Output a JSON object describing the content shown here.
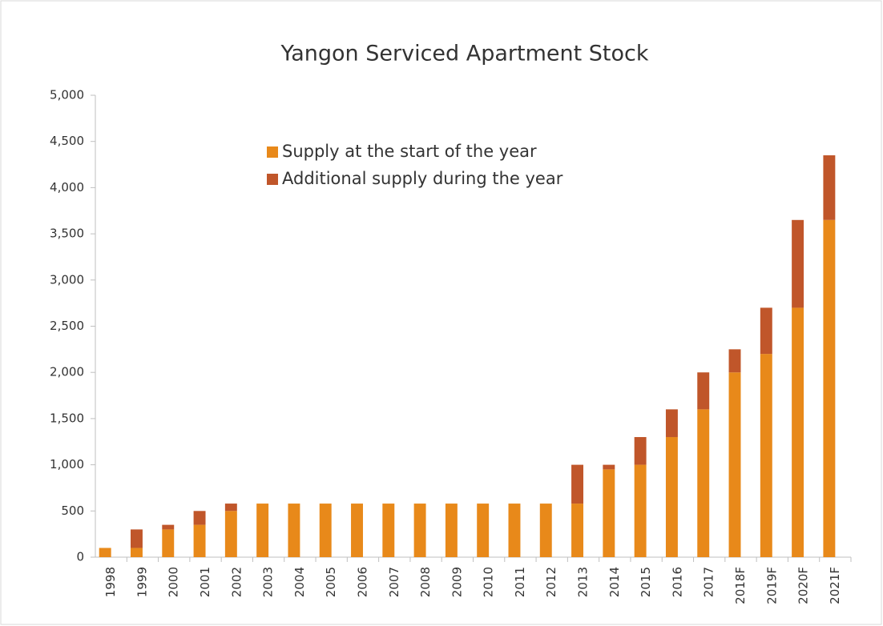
{
  "chart_data": {
    "type": "stacked_bar",
    "title": "Yangon Serviced Apartment Stock",
    "categories": [
      "1998",
      "1999",
      "2000",
      "2001",
      "2002",
      "2003",
      "2004",
      "2005",
      "2006",
      "2007",
      "2008",
      "2009",
      "2010",
      "2011",
      "2012",
      "2013",
      "2014",
      "2015",
      "2016",
      "2017",
      "2018F",
      "2019F",
      "2020F",
      "2021F"
    ],
    "series": [
      {
        "name": "Supply at the start of the year",
        "color": "#e8891a",
        "values": [
          100,
          100,
          300,
          350,
          500,
          580,
          580,
          580,
          580,
          580,
          580,
          580,
          580,
          580,
          580,
          580,
          950,
          1000,
          1300,
          1600,
          2000,
          2200,
          2700,
          3650
        ]
      },
      {
        "name": "Additional supply during the year",
        "color": "#c0562a",
        "values": [
          0,
          200,
          50,
          150,
          80,
          0,
          0,
          0,
          0,
          0,
          0,
          0,
          0,
          0,
          0,
          420,
          50,
          300,
          300,
          400,
          250,
          500,
          950,
          700
        ]
      }
    ],
    "ylim": [
      0,
      5000
    ],
    "yticks": [
      0,
      500,
      {
        "value": 1000,
        "label": "1,000"
      },
      {
        "value": 1500,
        "label": "1,500"
      },
      {
        "value": 2000,
        "label": "2,000"
      },
      {
        "value": 2500,
        "label": "2,500"
      },
      {
        "value": 3000,
        "label": "3,000"
      },
      {
        "value": 3500,
        "label": "3,500"
      },
      {
        "value": 4000,
        "label": "4,000"
      },
      {
        "value": 4500,
        "label": "4,500"
      },
      {
        "value": 5000,
        "label": "5,000"
      }
    ],
    "grid": false,
    "legend": "top-center"
  }
}
